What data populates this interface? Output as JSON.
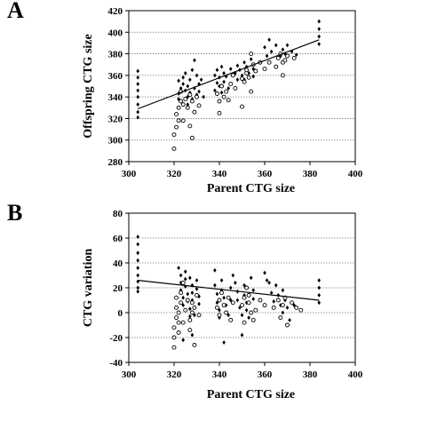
{
  "chart_data": [
    {
      "type": "scatter",
      "panel_label": "A",
      "title": "",
      "xlabel": "Parent CTG size",
      "ylabel": "Offspring CTG size",
      "xlim": [
        300,
        400
      ],
      "ylim": [
        280,
        420
      ],
      "xticks": [
        300,
        320,
        340,
        360,
        380,
        400
      ],
      "yticks": [
        280,
        300,
        320,
        340,
        360,
        380,
        400,
        420
      ],
      "grid": "horizontal-dotted",
      "trendline": {
        "x": [
          304,
          384
        ],
        "y": [
          329,
          393
        ]
      },
      "series": [
        {
          "marker": "filled-diamond",
          "points": [
            [
              304,
              364
            ],
            [
              304,
              358
            ],
            [
              304,
              352
            ],
            [
              304,
              346
            ],
            [
              304,
              340
            ],
            [
              304,
              333
            ],
            [
              304,
              326
            ],
            [
              304,
              321
            ],
            [
              322,
              343
            ],
            [
              322,
              355
            ],
            [
              322,
              338
            ],
            [
              323,
              348
            ],
            [
              324,
              352
            ],
            [
              324,
              358
            ],
            [
              325,
              346
            ],
            [
              325,
              362
            ],
            [
              326,
              333
            ],
            [
              326,
              340
            ],
            [
              326,
              350
            ],
            [
              327,
              344
            ],
            [
              327,
              356
            ],
            [
              328,
              338
            ],
            [
              328,
              365
            ],
            [
              329,
              348
            ],
            [
              329,
              374
            ],
            [
              330,
              342
            ],
            [
              330,
              360
            ],
            [
              331,
              352
            ],
            [
              331,
              345
            ],
            [
              332,
              356
            ],
            [
              333,
              340
            ],
            [
              338,
              360
            ],
            [
              338,
              346
            ],
            [
              339,
              365
            ],
            [
              339,
              353
            ],
            [
              340,
              358
            ],
            [
              340,
              350
            ],
            [
              341,
              368
            ],
            [
              341,
              344
            ],
            [
              342,
              362
            ],
            [
              342,
              354
            ],
            [
              343,
              359
            ],
            [
              344,
              348
            ],
            [
              345,
              366
            ],
            [
              345,
              352
            ],
            [
              347,
              362
            ],
            [
              348,
              369
            ],
            [
              348,
              356
            ],
            [
              349,
              365
            ],
            [
              350,
              360
            ],
            [
              351,
              372
            ],
            [
              351,
              356
            ],
            [
              352,
              368
            ],
            [
              353,
              362
            ],
            [
              354,
              375
            ],
            [
              355,
              359
            ],
            [
              355,
              366
            ],
            [
              360,
              386
            ],
            [
              361,
              378
            ],
            [
              362,
              393
            ],
            [
              363,
              382
            ],
            [
              365,
              388
            ],
            [
              367,
              378
            ],
            [
              368,
              384
            ],
            [
              369,
              380
            ],
            [
              370,
              388
            ],
            [
              372,
              382
            ],
            [
              374,
              379
            ],
            [
              384,
              410
            ],
            [
              384,
              403
            ],
            [
              384,
              396
            ],
            [
              384,
              389
            ]
          ]
        },
        {
          "marker": "open-circle",
          "points": [
            [
              320,
              305
            ],
            [
              320,
              292
            ],
            [
              321,
              312
            ],
            [
              321,
              324
            ],
            [
              322,
              318
            ],
            [
              322,
              330
            ],
            [
              323,
              336
            ],
            [
              323,
              345
            ],
            [
              324,
              333
            ],
            [
              324,
              318
            ],
            [
              325,
              338
            ],
            [
              326,
              330
            ],
            [
              327,
              313
            ],
            [
              327,
              342
            ],
            [
              328,
              302
            ],
            [
              328,
              336
            ],
            [
              329,
              326
            ],
            [
              330,
              340
            ],
            [
              331,
              332
            ],
            [
              339,
              343
            ],
            [
              340,
              336
            ],
            [
              340,
              325
            ],
            [
              341,
              350
            ],
            [
              342,
              340
            ],
            [
              343,
              345
            ],
            [
              344,
              337
            ],
            [
              345,
              352
            ],
            [
              346,
              360
            ],
            [
              347,
              348
            ],
            [
              350,
              331
            ],
            [
              350,
              357
            ],
            [
              351,
              354
            ],
            [
              352,
              362
            ],
            [
              352,
              365
            ],
            [
              353,
              358
            ],
            [
              354,
              345
            ],
            [
              354,
              380
            ],
            [
              355,
              370
            ],
            [
              356,
              364
            ],
            [
              358,
              372
            ],
            [
              360,
              366
            ],
            [
              362,
              372
            ],
            [
              365,
              368
            ],
            [
              366,
              376
            ],
            [
              367,
              380
            ],
            [
              368,
              372
            ],
            [
              368,
              360
            ],
            [
              369,
              374
            ],
            [
              370,
              378
            ],
            [
              373,
              376
            ]
          ]
        }
      ]
    },
    {
      "type": "scatter",
      "panel_label": "B",
      "title": "",
      "xlabel": "Parent CTG size",
      "ylabel": "CTG variation",
      "xlim": [
        300,
        400
      ],
      "ylim": [
        -40,
        80
      ],
      "xticks": [
        300,
        320,
        340,
        360,
        380,
        400
      ],
      "yticks": [
        -40,
        -20,
        0,
        20,
        40,
        60,
        80
      ],
      "grid": "horizontal-dotted",
      "trendline": {
        "x": [
          304,
          384
        ],
        "y": [
          26,
          10
        ]
      },
      "series": [
        {
          "marker": "filled-diamond",
          "points": [
            [
              304,
              61
            ],
            [
              304,
              55
            ],
            [
              304,
              48
            ],
            [
              304,
              42
            ],
            [
              304,
              36
            ],
            [
              304,
              30
            ],
            [
              304,
              25
            ],
            [
              304,
              20
            ],
            [
              304,
              17
            ],
            [
              322,
              36
            ],
            [
              323,
              30
            ],
            [
              323,
              24
            ],
            [
              323,
              18
            ],
            [
              324,
              12
            ],
            [
              324,
              6
            ],
            [
              325,
              33
            ],
            [
              325,
              27
            ],
            [
              325,
              21
            ],
            [
              326,
              15
            ],
            [
              326,
              9
            ],
            [
              327,
              3
            ],
            [
              327,
              -3
            ],
            [
              327,
              28
            ],
            [
              328,
              22
            ],
            [
              328,
              16
            ],
            [
              328,
              10
            ],
            [
              329,
              4
            ],
            [
              329,
              -2
            ],
            [
              330,
              26
            ],
            [
              330,
              19
            ],
            [
              331,
              13
            ],
            [
              331,
              7
            ],
            [
              324,
              -22
            ],
            [
              328,
              -18
            ],
            [
              338,
              34
            ],
            [
              338,
              22
            ],
            [
              339,
              15
            ],
            [
              339,
              8
            ],
            [
              340,
              2
            ],
            [
              340,
              -4
            ],
            [
              341,
              26
            ],
            [
              341,
              18
            ],
            [
              342,
              12
            ],
            [
              342,
              -24
            ],
            [
              343,
              6
            ],
            [
              344,
              -2
            ],
            [
              345,
              20
            ],
            [
              345,
              10
            ],
            [
              346,
              30
            ],
            [
              347,
              24
            ],
            [
              348,
              17
            ],
            [
              348,
              10
            ],
            [
              349,
              4
            ],
            [
              350,
              -2
            ],
            [
              351,
              22
            ],
            [
              351,
              14
            ],
            [
              352,
              8
            ],
            [
              352,
              2
            ],
            [
              353,
              -4
            ],
            [
              354,
              28
            ],
            [
              355,
              18
            ],
            [
              355,
              11
            ],
            [
              350,
              -18
            ],
            [
              360,
              32
            ],
            [
              361,
              26
            ],
            [
              362,
              24
            ],
            [
              363,
              16
            ],
            [
              364,
              9
            ],
            [
              365,
              22
            ],
            [
              366,
              14
            ],
            [
              367,
              6
            ],
            [
              368,
              18
            ],
            [
              368,
              0
            ],
            [
              369,
              10
            ],
            [
              370,
              4
            ],
            [
              371,
              -6
            ],
            [
              373,
              6
            ],
            [
              384,
              26
            ],
            [
              384,
              20
            ],
            [
              384,
              14
            ],
            [
              384,
              8
            ]
          ]
        },
        {
          "marker": "open-circle",
          "points": [
            [
              320,
              -28
            ],
            [
              320,
              -20
            ],
            [
              320,
              -12
            ],
            [
              321,
              -4
            ],
            [
              321,
              4
            ],
            [
              321,
              12
            ],
            [
              322,
              -16
            ],
            [
              322,
              -8
            ],
            [
              322,
              0
            ],
            [
              323,
              8
            ],
            [
              323,
              16
            ],
            [
              324,
              24
            ],
            [
              324,
              -8
            ],
            [
              325,
              2
            ],
            [
              326,
              10
            ],
            [
              327,
              -14
            ],
            [
              327,
              -6
            ],
            [
              328,
              0
            ],
            [
              328,
              8
            ],
            [
              329,
              -26
            ],
            [
              329,
              4
            ],
            [
              330,
              14
            ],
            [
              331,
              -2
            ],
            [
              339,
              4
            ],
            [
              340,
              10
            ],
            [
              340,
              -2
            ],
            [
              341,
              16
            ],
            [
              342,
              6
            ],
            [
              343,
              0
            ],
            [
              344,
              12
            ],
            [
              345,
              -6
            ],
            [
              346,
              8
            ],
            [
              350,
              6
            ],
            [
              351,
              12
            ],
            [
              351,
              -8
            ],
            [
              352,
              20
            ],
            [
              353,
              14
            ],
            [
              353,
              8
            ],
            [
              354,
              0
            ],
            [
              355,
              -6
            ],
            [
              356,
              2
            ],
            [
              358,
              10
            ],
            [
              360,
              6
            ],
            [
              364,
              4
            ],
            [
              366,
              10
            ],
            [
              367,
              -4
            ],
            [
              368,
              6
            ],
            [
              369,
              12
            ],
            [
              370,
              -10
            ],
            [
              372,
              8
            ],
            [
              374,
              4
            ],
            [
              376,
              2
            ]
          ]
        }
      ]
    }
  ]
}
